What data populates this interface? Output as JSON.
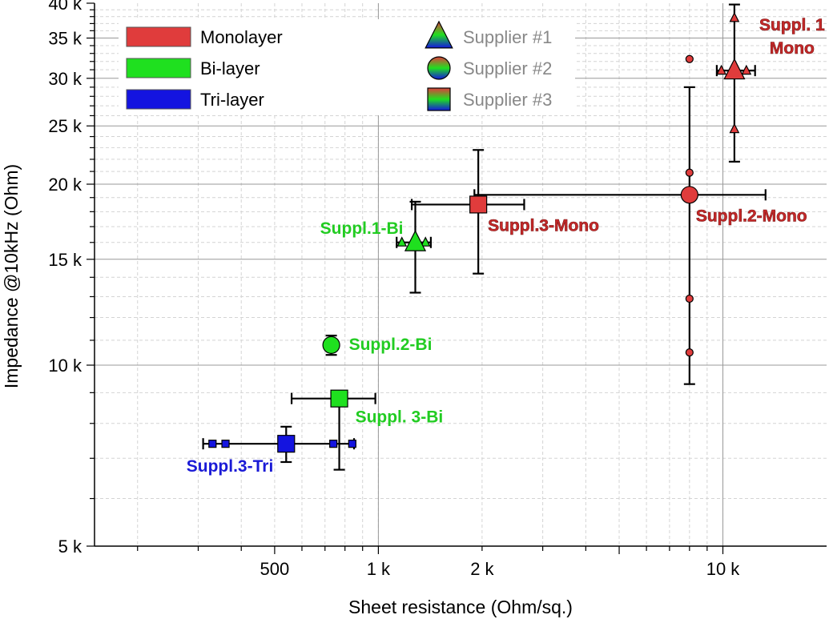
{
  "chart_data": {
    "type": "scatter",
    "title": "",
    "xlabel": "Sheet resistance (Ohm/sq.)",
    "ylabel": "Impedance @10kHz (Ohm)",
    "x_scale": "log",
    "y_scale": "log",
    "xlim": [
      150,
      20000
    ],
    "ylim": [
      5000,
      40000
    ],
    "x_tick_values": [
      500,
      1000,
      2000,
      10000
    ],
    "x_tick_labels": [
      "500",
      "1 k",
      "2 k",
      "10 k"
    ],
    "y_tick_values": [
      5000,
      10000,
      15000,
      20000,
      25000,
      30000,
      35000,
      40000
    ],
    "y_tick_labels": [
      "5 k",
      "10 k",
      "15 k",
      "20 k",
      "25 k",
      "30 k",
      "35 k",
      "40 k"
    ],
    "grid": true,
    "legend_layers": [
      {
        "label": "Monolayer",
        "color": "#e03c3c"
      },
      {
        "label": "Bi-layer",
        "color": "#1fe01f"
      },
      {
        "label": "Tri-layer",
        "color": "#1414e0"
      }
    ],
    "legend_suppliers": [
      {
        "label": "Supplier #1",
        "marker": "triangle"
      },
      {
        "label": "Supplier #2",
        "marker": "circle"
      },
      {
        "label": "Supplier #3",
        "marker": "square"
      }
    ],
    "points": [
      {
        "label": "Suppl. 1\nMono",
        "layer": "Monolayer",
        "supplier": "Supplier #1",
        "x": 10800,
        "y": 30900,
        "x_err": [
          9600,
          12400
        ],
        "y_err": [
          21800,
          39800
        ],
        "samples": [
          {
            "x": 9900,
            "y": 30900
          },
          {
            "x": 11700,
            "y": 30900
          },
          {
            "x": 10800,
            "y": 37800
          },
          {
            "x": 10800,
            "y": 24700
          }
        ]
      },
      {
        "label": "Suppl.2-Mono",
        "layer": "Monolayer",
        "supplier": "Supplier #2",
        "x": 8000,
        "y": 19200,
        "x_err": [
          1900,
          13300
        ],
        "y_err": [
          9300,
          29000
        ],
        "samples": [
          {
            "x": 8000,
            "y": 32300
          },
          {
            "x": 8000,
            "y": 20900
          },
          {
            "x": 8000,
            "y": 12900
          },
          {
            "x": 8000,
            "y": 10500
          }
        ]
      },
      {
        "label": "Suppl.3-Mono",
        "layer": "Monolayer",
        "supplier": "Supplier #3",
        "x": 1950,
        "y": 18500,
        "x_err": [
          1250,
          2650
        ],
        "y_err": [
          14200,
          22800
        ],
        "samples": []
      },
      {
        "label": "Suppl.1-Bi",
        "layer": "Bi-layer",
        "supplier": "Supplier #1",
        "x": 1280,
        "y": 16000,
        "x_err": [
          1130,
          1420
        ],
        "y_err": [
          13200,
          18700
        ],
        "samples": [
          {
            "x": 1170,
            "y": 16000
          },
          {
            "x": 1370,
            "y": 16000
          }
        ]
      },
      {
        "label": "Suppl.2-Bi",
        "layer": "Bi-layer",
        "supplier": "Supplier #2",
        "x": 730,
        "y": 10800,
        "x_err": [
          730,
          730
        ],
        "y_err": [
          10400,
          11200
        ],
        "samples": []
      },
      {
        "label": "Suppl. 3-Bi",
        "layer": "Bi-layer",
        "supplier": "Supplier #3",
        "x": 770,
        "y": 8800,
        "x_err": [
          560,
          980
        ],
        "y_err": [
          6700,
          8800
        ],
        "samples": []
      },
      {
        "label": "Suppl.3-Tri",
        "layer": "Tri-layer",
        "supplier": "Supplier #3",
        "x": 540,
        "y": 7400,
        "x_err": [
          310,
          850
        ],
        "y_err": [
          6900,
          7900
        ],
        "samples": [
          {
            "x": 330,
            "y": 7400
          },
          {
            "x": 360,
            "y": 7400
          },
          {
            "x": 740,
            "y": 7400
          },
          {
            "x": 840,
            "y": 7400
          }
        ]
      }
    ]
  }
}
